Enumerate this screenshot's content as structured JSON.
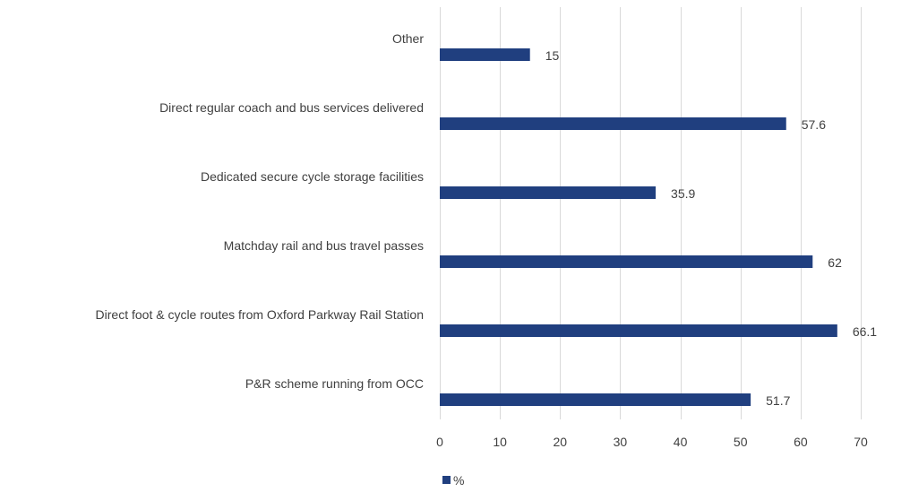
{
  "chart_data": {
    "type": "bar",
    "orientation": "horizontal",
    "categories": [
      "Other",
      "Direct regular coach and bus services delivered",
      "Dedicated secure cycle storage facilities",
      "Matchday rail and bus travel passes",
      "Direct foot & cycle routes from Oxford Parkway Rail Station",
      "P&R scheme running from OCC"
    ],
    "series": [
      {
        "name": "%",
        "values": [
          15,
          57.6,
          35.9,
          62,
          66.1,
          51.7
        ],
        "color": "#203f7f"
      }
    ],
    "data_labels": [
      "15",
      "57.6",
      "35.9",
      "62",
      "66.1",
      "51.7"
    ],
    "xlim": [
      0,
      70
    ],
    "x_ticks": [
      0,
      10,
      20,
      30,
      40,
      50,
      60,
      70
    ],
    "x_tick_labels": [
      "0",
      "10",
      "20",
      "30",
      "40",
      "50",
      "60",
      "70"
    ],
    "grid": true,
    "gridline_color": "#d9d9d9",
    "legend_position": "bottom"
  }
}
